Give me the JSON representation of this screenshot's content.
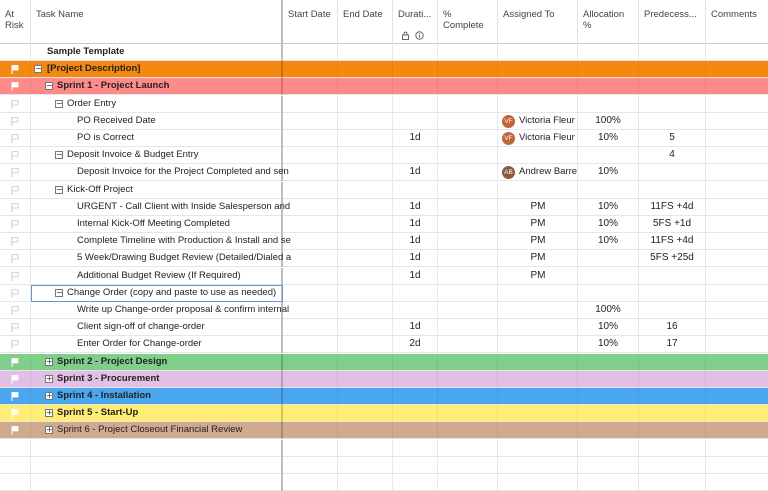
{
  "columns": {
    "at_risk": "At Risk",
    "task_name": "Task Name",
    "start_date": "Start Date",
    "end_date": "End Date",
    "duration": "Durati...",
    "pct_complete": "% Complete",
    "assigned_to": "Assigned To",
    "allocation": "Allocation %",
    "predecessors": "Predecess...",
    "comments": "Comments"
  },
  "header_icons": [
    "lock-icon",
    "info-icon"
  ],
  "colors": {
    "orange": "#f5890f",
    "red": "#ff8a8a",
    "green": "#7fcf8b",
    "lavender": "#e2c0e6",
    "blue": "#4aa6ef",
    "yellow": "#ffee73",
    "tan": "#cfaa8e",
    "avatar_vf": "#c0643a",
    "avatar_ab": "#8a5a44"
  },
  "rows": [
    {
      "task": "Sample Template",
      "indent": 0,
      "expander": "",
      "bold": true,
      "band": "",
      "flag": "",
      "duration": "",
      "assigned": "",
      "avatar": "",
      "allocation": "",
      "predecessors": ""
    },
    {
      "task": "[Project Description]",
      "indent": 0,
      "expander": "minus",
      "bold": true,
      "band": "orange",
      "flag": "white",
      "duration": "",
      "assigned": "",
      "avatar": "",
      "allocation": "",
      "predecessors": ""
    },
    {
      "task": "Sprint 1 - Project Launch",
      "indent": 1,
      "expander": "minus",
      "bold": true,
      "band": "red",
      "flag": "white",
      "duration": "",
      "assigned": "",
      "avatar": "",
      "allocation": "",
      "predecessors": ""
    },
    {
      "task": "Order Entry",
      "indent": 2,
      "expander": "minus",
      "bold": false,
      "band": "",
      "flag": "gray",
      "duration": "",
      "assigned": "",
      "avatar": "",
      "allocation": "",
      "predecessors": ""
    },
    {
      "task": "PO Received Date",
      "indent": 3,
      "expander": "",
      "bold": false,
      "band": "",
      "flag": "gray",
      "duration": "",
      "assigned": "Victoria Fleur",
      "avatar": "VF",
      "allocation": "100%",
      "predecessors": ""
    },
    {
      "task": "PO is Correct",
      "indent": 3,
      "expander": "",
      "bold": false,
      "band": "",
      "flag": "gray",
      "duration": "1d",
      "assigned": "Victoria Fleur",
      "avatar": "VF",
      "allocation": "10%",
      "predecessors": "5"
    },
    {
      "task": "Deposit Invoice & Budget Entry",
      "indent": 2,
      "expander": "minus",
      "bold": false,
      "band": "",
      "flag": "gray",
      "duration": "",
      "assigned": "",
      "avatar": "",
      "allocation": "",
      "predecessors": "4"
    },
    {
      "task": "Deposit Invoice for the Project Completed and sen",
      "indent": 3,
      "expander": "",
      "bold": false,
      "band": "",
      "flag": "gray",
      "duration": "1d",
      "assigned": "Andrew Barre",
      "avatar": "AB",
      "allocation": "10%",
      "predecessors": ""
    },
    {
      "task": "Kick-Off Project",
      "indent": 2,
      "expander": "minus",
      "bold": false,
      "band": "",
      "flag": "gray",
      "duration": "",
      "assigned": "",
      "avatar": "",
      "allocation": "",
      "predecessors": ""
    },
    {
      "task": "URGENT - Call Client with Inside Salesperson and",
      "indent": 3,
      "expander": "",
      "bold": false,
      "band": "",
      "flag": "gray",
      "duration": "1d",
      "assigned": "PM",
      "avatar": "",
      "allocation": "10%",
      "predecessors": "11FS +4d"
    },
    {
      "task": "Internal Kick-Off Meeting Completed",
      "indent": 3,
      "expander": "",
      "bold": false,
      "band": "",
      "flag": "gray",
      "duration": "1d",
      "assigned": "PM",
      "avatar": "",
      "allocation": "10%",
      "predecessors": "5FS +1d"
    },
    {
      "task": "Complete Timeline with Production & Install and se",
      "indent": 3,
      "expander": "",
      "bold": false,
      "band": "",
      "flag": "gray",
      "duration": "1d",
      "assigned": "PM",
      "avatar": "",
      "allocation": "10%",
      "predecessors": "11FS +4d"
    },
    {
      "task": "5 Week/Drawing Budget Review (Detailed/Dialed a",
      "indent": 3,
      "expander": "",
      "bold": false,
      "band": "",
      "flag": "gray",
      "duration": "1d",
      "assigned": "PM",
      "avatar": "",
      "allocation": "",
      "predecessors": "5FS +25d"
    },
    {
      "task": "Additional Budget Review (If Required)",
      "indent": 3,
      "expander": "",
      "bold": false,
      "band": "",
      "flag": "gray",
      "duration": "1d",
      "assigned": "PM",
      "avatar": "",
      "allocation": "",
      "predecessors": ""
    },
    {
      "task": "Change Order (copy and paste to use as needed)",
      "indent": 2,
      "expander": "minus",
      "bold": false,
      "band": "",
      "flag": "gray",
      "duration": "",
      "assigned": "",
      "avatar": "",
      "allocation": "",
      "predecessors": "",
      "highlight": true
    },
    {
      "task": "Write up Change-order proposal & confirm internal",
      "indent": 3,
      "expander": "",
      "bold": false,
      "band": "",
      "flag": "gray",
      "duration": "",
      "assigned": "",
      "avatar": "",
      "allocation": "100%",
      "predecessors": ""
    },
    {
      "task": "Client sign-off of change-order",
      "indent": 3,
      "expander": "",
      "bold": false,
      "band": "",
      "flag": "gray",
      "duration": "1d",
      "assigned": "",
      "avatar": "",
      "allocation": "10%",
      "predecessors": "16"
    },
    {
      "task": "Enter Order for Change-order",
      "indent": 3,
      "expander": "",
      "bold": false,
      "band": "",
      "flag": "gray",
      "duration": "2d",
      "assigned": "",
      "avatar": "",
      "allocation": "10%",
      "predecessors": "17"
    },
    {
      "task": "Sprint 2 - Project Design",
      "indent": 1,
      "expander": "plus",
      "bold": true,
      "band": "green",
      "flag": "white",
      "duration": "",
      "assigned": "",
      "avatar": "",
      "allocation": "",
      "predecessors": ""
    },
    {
      "task": "Sprint 3 - Procurement",
      "indent": 1,
      "expander": "plus",
      "bold": true,
      "band": "lavender",
      "flag": "white",
      "duration": "",
      "assigned": "",
      "avatar": "",
      "allocation": "",
      "predecessors": ""
    },
    {
      "task": "Sprint 4 - Installation",
      "indent": 1,
      "expander": "plus",
      "bold": true,
      "band": "blue",
      "flag": "white",
      "duration": "",
      "assigned": "",
      "avatar": "",
      "allocation": "",
      "predecessors": ""
    },
    {
      "task": "Sprint 5 - Start-Up",
      "indent": 1,
      "expander": "plus",
      "bold": true,
      "band": "yellow",
      "flag": "white",
      "duration": "",
      "assigned": "",
      "avatar": "",
      "allocation": "",
      "predecessors": ""
    },
    {
      "task": "Sprint 6 - Project Closeout Financial Review",
      "indent": 1,
      "expander": "plus",
      "bold": false,
      "band": "tan",
      "flag": "white",
      "duration": "",
      "assigned": "",
      "avatar": "",
      "allocation": "",
      "predecessors": ""
    }
  ]
}
